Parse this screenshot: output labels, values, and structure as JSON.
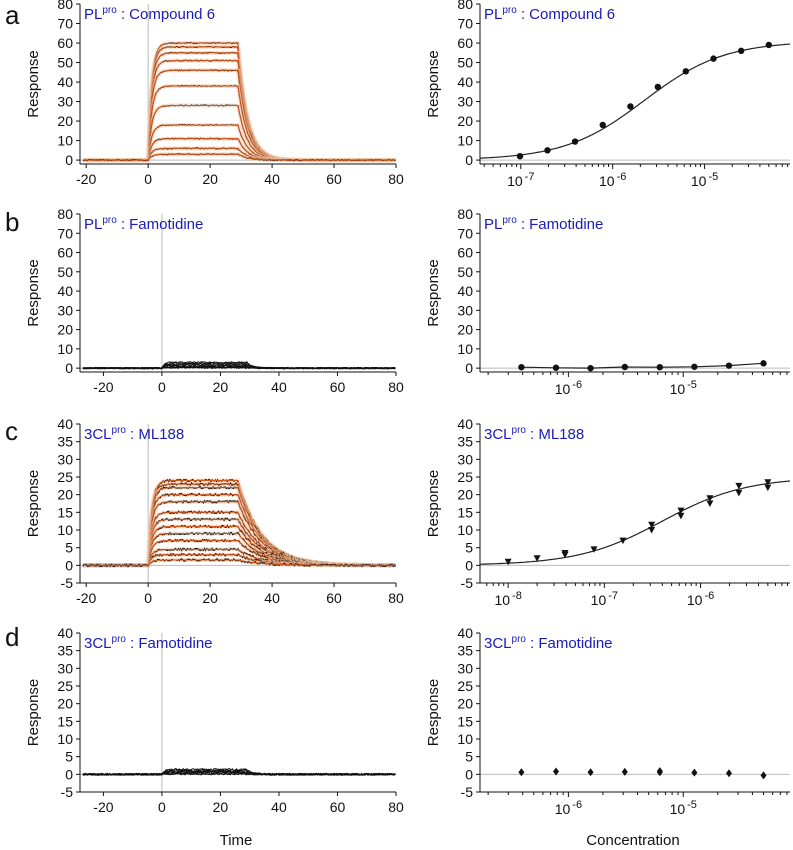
{
  "figure": {
    "panel_letters": [
      "a",
      "b",
      "c",
      "d"
    ],
    "x_label_left": "Time",
    "x_label_right": "Concentration",
    "y_label": "Response"
  },
  "colors": {
    "trace": "#111111",
    "fit": "#d2561a",
    "fit_band": "#f1c8a8",
    "title": "#1a1ab8",
    "zero_line": "#bbbbbb"
  },
  "chart_data": [
    {
      "id": "a-sensorgram",
      "type": "line",
      "title": {
        "main": "PL",
        "sup": "pro",
        "rest": ": Compound 6"
      },
      "xlabel": "",
      "ylabel": "Response",
      "xlim": [
        -22,
        80
      ],
      "ylim": [
        -2,
        80
      ],
      "xticks": [
        -20,
        0,
        20,
        40,
        60,
        80
      ],
      "yticks": [
        0,
        10,
        20,
        30,
        40,
        50,
        60,
        70,
        80
      ],
      "injection_start": 0,
      "injection_end": 29,
      "kon": 0.9,
      "koff": 0.32,
      "noise": 0.6,
      "show_fit": true,
      "series": [
        {
          "plateau": 60
        },
        {
          "plateau": 58
        },
        {
          "plateau": 55
        },
        {
          "plateau": 51
        },
        {
          "plateau": 46
        },
        {
          "plateau": 38
        },
        {
          "plateau": 28
        },
        {
          "plateau": 18
        },
        {
          "plateau": 11
        },
        {
          "plateau": 6
        },
        {
          "plateau": 3
        }
      ]
    },
    {
      "id": "a-dose",
      "type": "scatter",
      "title": {
        "main": "PL",
        "sup": "pro",
        "rest": ": Compound 6"
      },
      "xlabel": "",
      "ylabel": "Response",
      "xscale": "log",
      "xlim": [
        3.6e-08,
        8.5e-05
      ],
      "ylim": [
        -2,
        80
      ],
      "yticks": [
        0,
        10,
        20,
        30,
        40,
        50,
        60,
        70,
        80
      ],
      "xticks": [
        {
          "base": "10",
          "exp": "-7",
          "value": 1e-07
        },
        {
          "base": "10",
          "exp": "-6",
          "value": 1e-06
        },
        {
          "base": "10",
          "exp": "-5",
          "value": 1e-05
        }
      ],
      "marker": "circle",
      "x": [
        9.8e-08,
        1.95e-07,
        3.9e-07,
        7.8e-07,
        1.56e-06,
        3.1e-06,
        6.25e-06,
        1.25e-05,
        2.5e-05,
        5e-05
      ],
      "y": [
        2,
        5,
        9.5,
        18,
        27.5,
        37.5,
        45.5,
        52,
        56,
        59
      ],
      "fit": {
        "model": "hill",
        "rmax": 61,
        "kd": 2.2e-06,
        "n": 1,
        "offset": 0
      }
    },
    {
      "id": "b-sensorgram",
      "type": "line",
      "title": {
        "main": "PL",
        "sup": "pro",
        "rest": ": Famotidine"
      },
      "xlabel": "",
      "ylabel": "Response",
      "xlim": [
        -28,
        80
      ],
      "ylim": [
        -2,
        80
      ],
      "xticks": [
        -20,
        0,
        20,
        40,
        60,
        80
      ],
      "yticks": [
        0,
        10,
        20,
        30,
        40,
        50,
        60,
        70,
        80
      ],
      "injection_start": 0,
      "injection_end": 29,
      "kon": 1.2,
      "koff": 0.5,
      "noise": 0.7,
      "show_fit": false,
      "series": [
        {
          "plateau": 3
        },
        {
          "plateau": 2.5
        },
        {
          "plateau": 2
        },
        {
          "plateau": 1.5
        },
        {
          "plateau": 1
        },
        {
          "plateau": 0.7
        },
        {
          "plateau": 0.4
        },
        {
          "plateau": 0.2
        }
      ]
    },
    {
      "id": "b-dose",
      "type": "scatter",
      "title": {
        "main": "PL",
        "sup": "pro",
        "rest": ": Famotidine"
      },
      "xlabel": "",
      "ylabel": "Response",
      "xscale": "log",
      "xlim": [
        1.7e-07,
        8.5e-05
      ],
      "ylim": [
        -2,
        80
      ],
      "yticks": [
        0,
        10,
        20,
        30,
        40,
        50,
        60,
        70,
        80
      ],
      "xticks": [
        {
          "base": "10",
          "exp": "-6",
          "value": 1e-06
        },
        {
          "base": "10",
          "exp": "-5",
          "value": 1e-05
        }
      ],
      "marker": "circle",
      "x": [
        3.9e-07,
        7.8e-07,
        1.56e-06,
        3.1e-06,
        6.25e-06,
        1.25e-05,
        2.5e-05,
        5e-05
      ],
      "y": [
        0.5,
        0.2,
        0,
        0.6,
        0.5,
        0.7,
        1.3,
        2.5
      ],
      "fit": {
        "model": "polyline"
      }
    },
    {
      "id": "c-sensorgram",
      "type": "line",
      "title": {
        "main": "3CL",
        "sup": "pro",
        "rest": ": ML188"
      },
      "xlabel": "",
      "ylabel": "Response",
      "xlim": [
        -22,
        80
      ],
      "ylim": [
        -5,
        40
      ],
      "xticks": [
        -20,
        0,
        20,
        40,
        60,
        80
      ],
      "yticks": [
        -5,
        0,
        5,
        10,
        15,
        20,
        25,
        30,
        35,
        40
      ],
      "injection_start": 0,
      "injection_end": 29,
      "kon": 0.9,
      "koff": 0.13,
      "noise": 0.7,
      "show_fit": true,
      "series": [
        {
          "plateau": 24
        },
        {
          "plateau": 23
        },
        {
          "plateau": 22
        },
        {
          "plateau": 20
        },
        {
          "plateau": 18
        },
        {
          "plateau": 15
        },
        {
          "plateau": 13
        },
        {
          "plateau": 11
        },
        {
          "plateau": 9
        },
        {
          "plateau": 7
        },
        {
          "plateau": 4.5
        },
        {
          "plateau": 3
        },
        {
          "plateau": 1.5
        }
      ]
    },
    {
      "id": "c-dose",
      "type": "scatter",
      "title": {
        "main": "3CL",
        "sup": "pro",
        "rest": ": ML188"
      },
      "xlabel": "",
      "ylabel": "Response",
      "xscale": "log",
      "xlim": [
        5.1e-09,
        8.5e-06
      ],
      "ylim": [
        -5,
        40
      ],
      "yticks": [
        -5,
        0,
        5,
        10,
        15,
        20,
        25,
        30,
        35,
        40
      ],
      "xticks": [
        {
          "base": "10",
          "exp": "-8",
          "value": 1e-08
        },
        {
          "base": "10",
          "exp": "-7",
          "value": 1e-07
        },
        {
          "base": "10",
          "exp": "-6",
          "value": 1e-06
        }
      ],
      "marker": "triangle-down",
      "x": [
        1e-08,
        2e-08,
        3.9e-08,
        3.9e-08,
        7.8e-08,
        1.56e-07,
        3.1e-07,
        3.1e-07,
        6.25e-07,
        6.25e-07,
        1.25e-06,
        1.25e-06,
        2.5e-06,
        2.5e-06,
        5e-06,
        5e-06
      ],
      "y": [
        1,
        2,
        3,
        3.5,
        4.5,
        7,
        10,
        11.5,
        14,
        15.5,
        17.5,
        19,
        20.5,
        22.5,
        22,
        23.5
      ],
      "fit": {
        "model": "hill",
        "rmax": 25,
        "kd": 4e-07,
        "n": 1,
        "offset": 0
      }
    },
    {
      "id": "d-sensorgram",
      "type": "line",
      "title": {
        "main": "3CL",
        "sup": "pro",
        "rest": ": Famotidine"
      },
      "xlabel": "Time",
      "ylabel": "Response",
      "xlim": [
        -28,
        80
      ],
      "ylim": [
        -5,
        40
      ],
      "xticks": [
        -20,
        0,
        20,
        40,
        60,
        80
      ],
      "yticks": [
        -5,
        0,
        5,
        10,
        15,
        20,
        25,
        30,
        35,
        40
      ],
      "injection_start": 0,
      "injection_end": 29,
      "kon": 1.2,
      "koff": 0.5,
      "noise": 0.5,
      "show_fit": false,
      "series": [
        {
          "plateau": 1.4
        },
        {
          "plateau": 1.1
        },
        {
          "plateau": 0.9
        },
        {
          "plateau": 0.7
        },
        {
          "plateau": 0.5
        },
        {
          "plateau": 0.3
        },
        {
          "plateau": 0.1
        }
      ]
    },
    {
      "id": "d-dose",
      "type": "scatter",
      "title": {
        "main": "3CL",
        "sup": "pro",
        "rest": ": Famotidine"
      },
      "xlabel": "Concentration",
      "ylabel": "Response",
      "xscale": "log",
      "xlim": [
        1.7e-07,
        8.5e-05
      ],
      "ylim": [
        -5,
        40
      ],
      "yticks": [
        -5,
        0,
        5,
        10,
        15,
        20,
        25,
        30,
        35,
        40
      ],
      "xticks": [
        {
          "base": "10",
          "exp": "-6",
          "value": 1e-06
        },
        {
          "base": "10",
          "exp": "-5",
          "value": 1e-05
        }
      ],
      "marker": "diamond",
      "x": [
        3.9e-07,
        7.8e-07,
        1.56e-06,
        3.1e-06,
        6.25e-06,
        6.25e-06,
        1.25e-05,
        2.5e-05,
        5e-05
      ],
      "y": [
        0.6,
        0.8,
        0.6,
        0.7,
        0.9,
        0.6,
        0.5,
        0.3,
        -0.3
      ],
      "fit": null
    }
  ]
}
